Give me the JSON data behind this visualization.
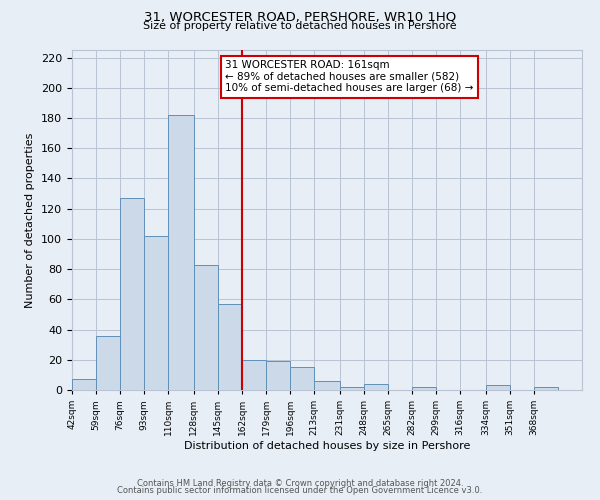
{
  "title": "31, WORCESTER ROAD, PERSHORE, WR10 1HQ",
  "subtitle": "Size of property relative to detached houses in Pershore",
  "xlabel": "Distribution of detached houses by size in Pershore",
  "ylabel": "Number of detached properties",
  "bin_edges": [
    42,
    59,
    76,
    93,
    110,
    128,
    145,
    162,
    179,
    196,
    213,
    231,
    248,
    265,
    282,
    299,
    316,
    334,
    351,
    368,
    385
  ],
  "bar_heights": [
    7,
    36,
    127,
    102,
    182,
    83,
    57,
    20,
    19,
    15,
    6,
    2,
    4,
    0,
    2,
    0,
    0,
    3,
    0,
    2
  ],
  "bar_facecolor": "#ccd9e8",
  "bar_edgecolor": "#6090b8",
  "background_color": "#e8eef5",
  "grid_color": "#b8c4d4",
  "vline_x": 162,
  "vline_color": "#cc0000",
  "annotation_title": "31 WORCESTER ROAD: 161sqm",
  "annotation_line1": "← 89% of detached houses are smaller (582)",
  "annotation_line2": "10% of semi-detached houses are larger (68) →",
  "annotation_box_edgecolor": "#cc0000",
  "footer_line1": "Contains HM Land Registry data © Crown copyright and database right 2024.",
  "footer_line2": "Contains public sector information licensed under the Open Government Licence v3.0.",
  "ylim": [
    0,
    225
  ],
  "xlim": [
    42,
    402
  ],
  "yticks": [
    0,
    20,
    40,
    60,
    80,
    100,
    120,
    140,
    160,
    180,
    200,
    220
  ]
}
